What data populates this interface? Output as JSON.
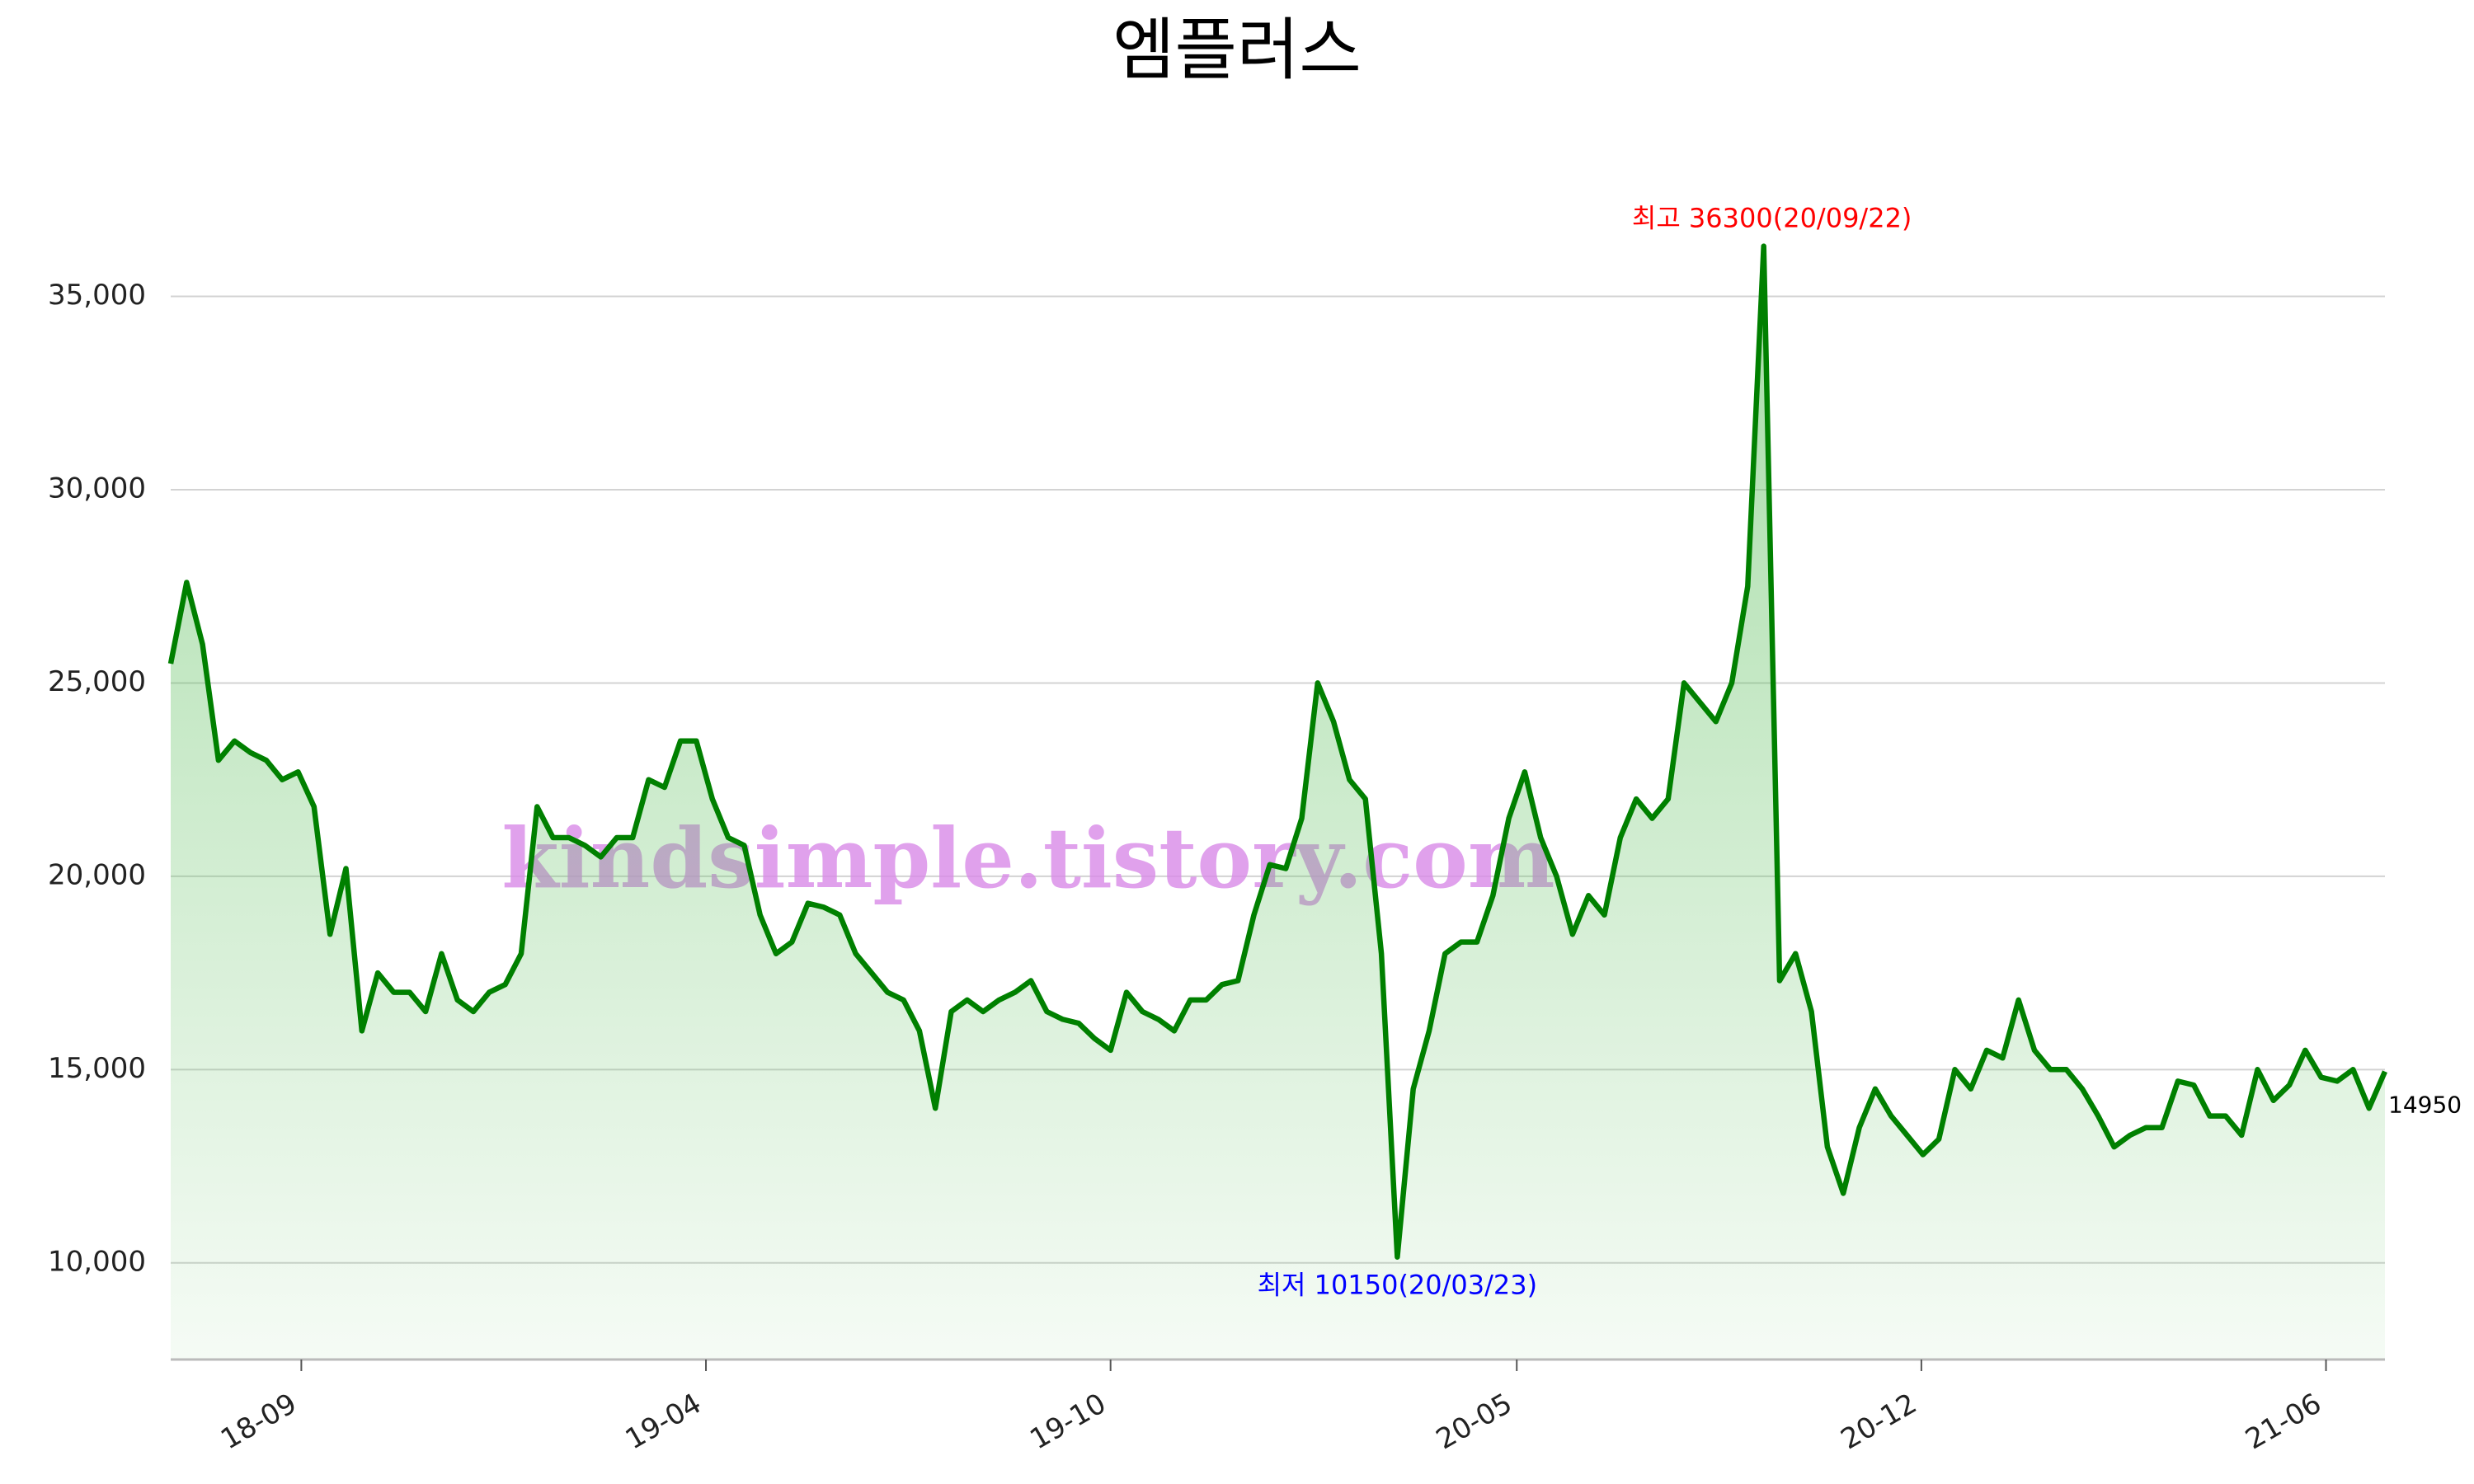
{
  "chart_data": {
    "type": "line",
    "title": "엠플러스",
    "watermark": "kindsimple.tistory.com",
    "color": "#008000",
    "grid": true,
    "xlim": [
      0,
      139
    ],
    "xticks": [
      {
        "value": 8.2,
        "label": "18-09"
      },
      {
        "value": 33.6,
        "label": "19-04"
      },
      {
        "value": 59.0,
        "label": "19-10"
      },
      {
        "value": 84.5,
        "label": "20-05"
      },
      {
        "value": 109.9,
        "label": "20-12"
      },
      {
        "value": 135.3,
        "label": "21-06"
      }
    ],
    "ylim": [
      7500,
      39000
    ],
    "yticks": [
      {
        "value": 10000,
        "label": "10,000"
      },
      {
        "value": 15000,
        "label": "15,000"
      },
      {
        "value": 20000,
        "label": "20,000"
      },
      {
        "value": 25000,
        "label": "25,000"
      },
      {
        "value": 30000,
        "label": "30,000"
      },
      {
        "value": 35000,
        "label": "35,000"
      }
    ],
    "values": [
      25500,
      27600,
      26000,
      23000,
      23500,
      23200,
      23000,
      22500,
      22700,
      21800,
      18500,
      20200,
      16000,
      17500,
      17000,
      17000,
      16500,
      18000,
      16800,
      16500,
      17000,
      17200,
      18000,
      21800,
      21000,
      21000,
      20800,
      20500,
      21000,
      21000,
      22500,
      22300,
      23500,
      23500,
      22000,
      21000,
      20800,
      19000,
      18000,
      18300,
      19300,
      19200,
      19000,
      18000,
      17500,
      17000,
      16800,
      16000,
      14000,
      16500,
      16800,
      16500,
      16800,
      17000,
      17300,
      16500,
      16300,
      16200,
      15800,
      15500,
      17000,
      16500,
      16300,
      16000,
      16800,
      16800,
      17200,
      17300,
      19000,
      20300,
      20200,
      21500,
      25000,
      24000,
      22500,
      22000,
      18000,
      10150,
      14500,
      16000,
      18000,
      18300,
      18300,
      19500,
      21500,
      22700,
      21000,
      20000,
      18500,
      19500,
      19000,
      21000,
      22000,
      21500,
      22000,
      25000,
      24500,
      24000,
      25000,
      27500,
      36300,
      17300,
      18000,
      16500,
      13000,
      11800,
      13500,
      14500,
      13800,
      13300,
      12800,
      13200,
      15000,
      14500,
      15500,
      15300,
      16800,
      15500,
      15000,
      15000,
      14500,
      13800,
      13000,
      13300,
      13500,
      13500,
      14700,
      14600,
      13800,
      13800,
      13300,
      15000,
      14200,
      14600,
      15500,
      14800,
      14700,
      15000,
      14000,
      14950
    ],
    "annotations": {
      "high": {
        "text": "최고 36300(20/09/22)",
        "color": "#ff0000"
      },
      "low": {
        "text": "최저 10150(20/03/23)",
        "color": "#0000ff"
      },
      "last": {
        "text": "14950",
        "color": "#000000"
      }
    }
  }
}
